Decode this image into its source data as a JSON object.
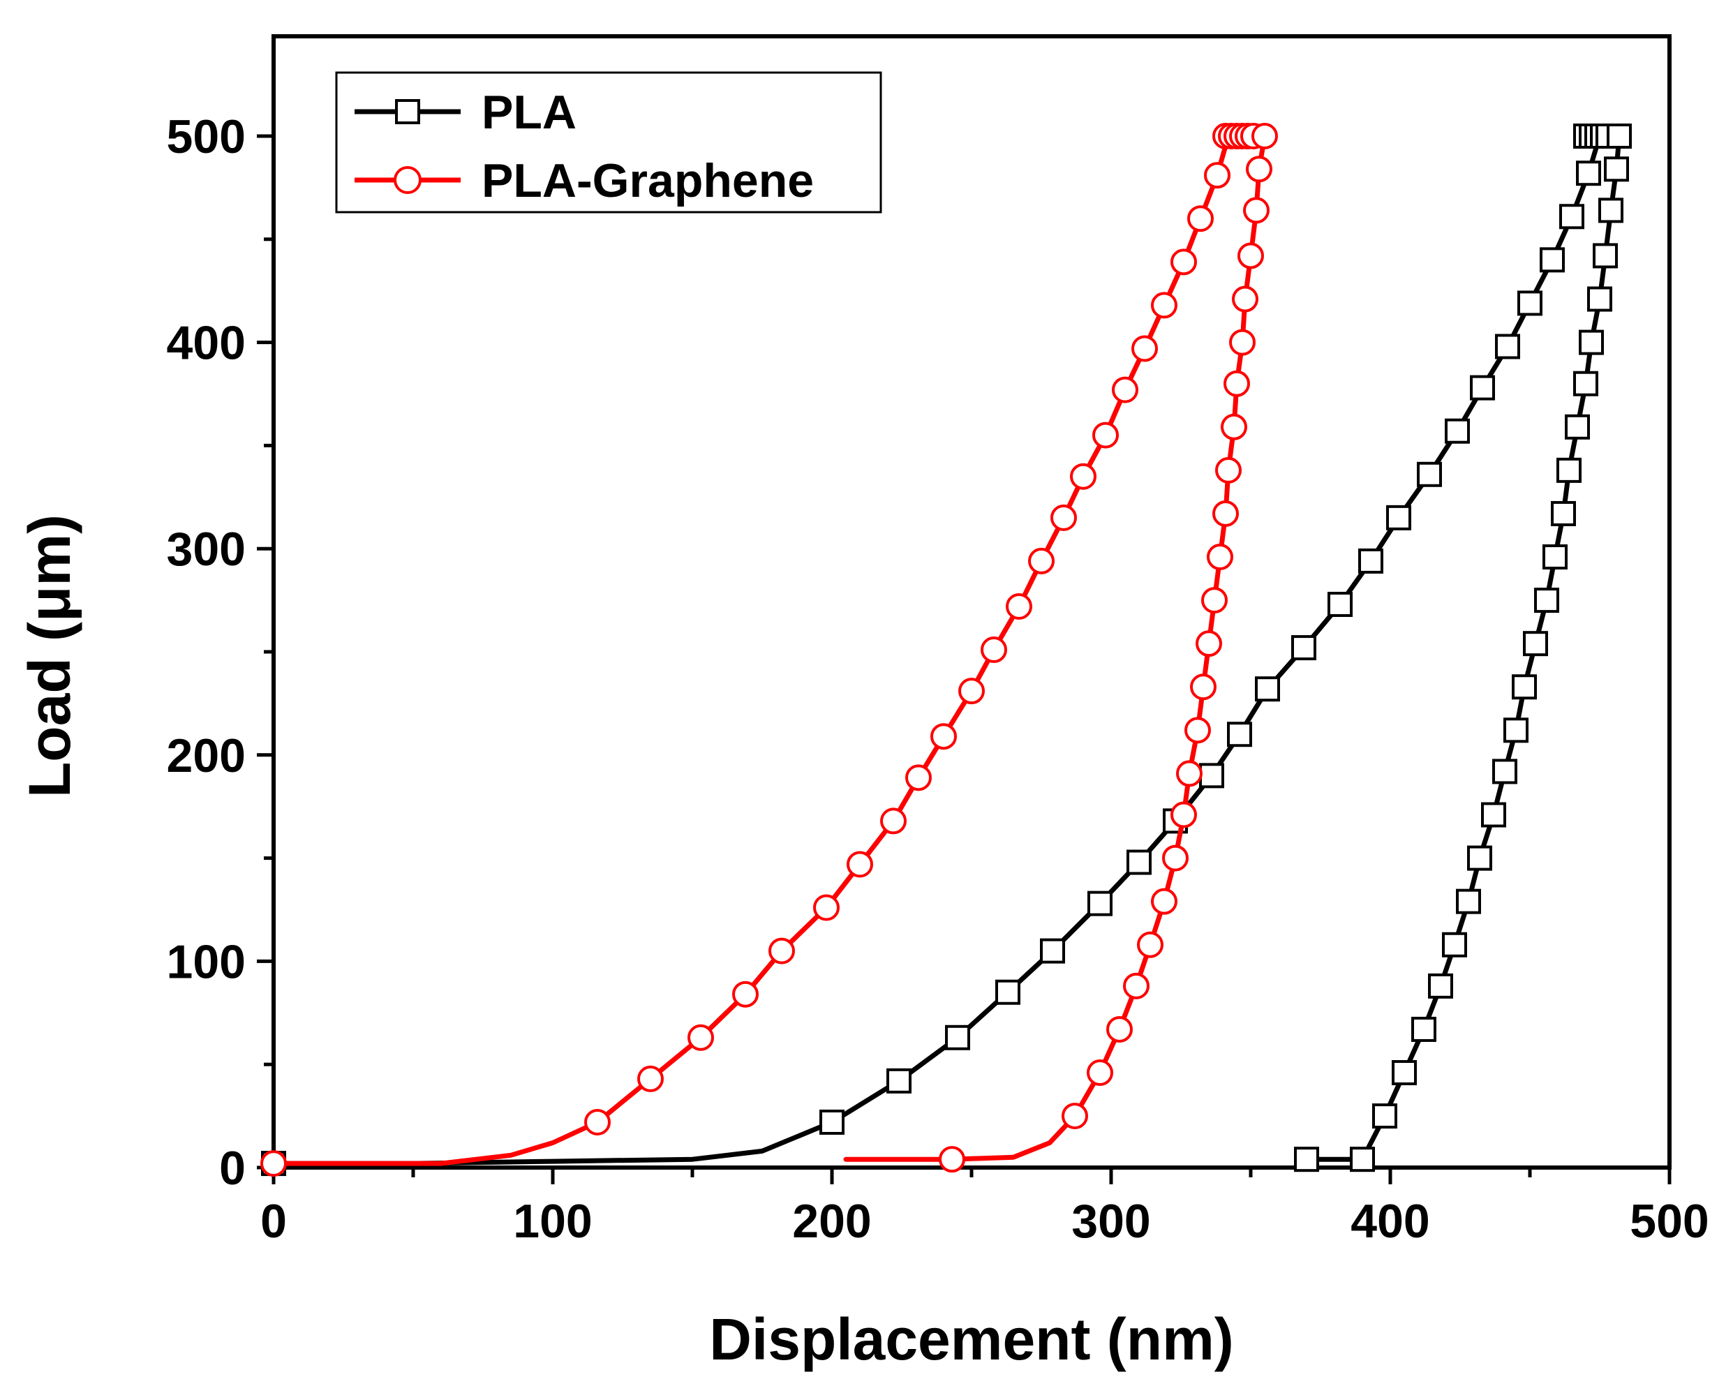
{
  "chart_data": {
    "type": "line",
    "title": "",
    "xlabel": "Displacement (nm)",
    "ylabel": "Load (μm)",
    "xlim": [
      0,
      500
    ],
    "ylim": [
      0,
      550
    ],
    "xticks": [
      0,
      100,
      200,
      300,
      400,
      500
    ],
    "yticks": [
      0,
      100,
      200,
      300,
      400,
      500
    ],
    "x_minor_step": 50,
    "y_minor_step": 50,
    "grid": false,
    "legend_position": "top-left",
    "series": [
      {
        "name": "PLA",
        "color": "#000000",
        "marker": "square",
        "line": [
          [
            0,
            2
          ],
          [
            50,
            2
          ],
          [
            100,
            3
          ],
          [
            150,
            4
          ],
          [
            175,
            8
          ],
          [
            200,
            22
          ],
          [
            224,
            42
          ],
          [
            245,
            63
          ],
          [
            263,
            85
          ],
          [
            279,
            105
          ],
          [
            296,
            128
          ],
          [
            310,
            148
          ],
          [
            323,
            168
          ],
          [
            336,
            190
          ],
          [
            346,
            210
          ],
          [
            356,
            232
          ],
          [
            369,
            252
          ],
          [
            382,
            273
          ],
          [
            393,
            294
          ],
          [
            403,
            315
          ],
          [
            414,
            336
          ],
          [
            424,
            357
          ],
          [
            433,
            378
          ],
          [
            442,
            398
          ],
          [
            450,
            419
          ],
          [
            458,
            440
          ],
          [
            465,
            461
          ],
          [
            471,
            482
          ],
          [
            475,
            500
          ],
          [
            482,
            500
          ],
          [
            481,
            484
          ],
          [
            479,
            464
          ],
          [
            477,
            442
          ],
          [
            475,
            421
          ],
          [
            472,
            400
          ],
          [
            470,
            380
          ],
          [
            467,
            359
          ],
          [
            464,
            338
          ],
          [
            462,
            317
          ],
          [
            459,
            296
          ],
          [
            456,
            275
          ],
          [
            452,
            254
          ],
          [
            448,
            233
          ],
          [
            445,
            212
          ],
          [
            441,
            192
          ],
          [
            437,
            171
          ],
          [
            432,
            150
          ],
          [
            428,
            129
          ],
          [
            423,
            108
          ],
          [
            418,
            88
          ],
          [
            412,
            67
          ],
          [
            405,
            46
          ],
          [
            398,
            25
          ],
          [
            390,
            4
          ],
          [
            370,
            4
          ]
        ],
        "markers": [
          [
            0,
            2
          ],
          [
            200,
            22
          ],
          [
            224,
            42
          ],
          [
            245,
            63
          ],
          [
            263,
            85
          ],
          [
            279,
            105
          ],
          [
            296,
            128
          ],
          [
            310,
            148
          ],
          [
            323,
            168
          ],
          [
            336,
            190
          ],
          [
            346,
            210
          ],
          [
            356,
            232
          ],
          [
            369,
            252
          ],
          [
            382,
            273
          ],
          [
            393,
            294
          ],
          [
            403,
            315
          ],
          [
            414,
            336
          ],
          [
            424,
            357
          ],
          [
            433,
            378
          ],
          [
            442,
            398
          ],
          [
            450,
            419
          ],
          [
            458,
            440
          ],
          [
            465,
            461
          ],
          [
            471,
            482
          ],
          [
            470,
            500
          ],
          [
            472,
            500
          ],
          [
            474,
            500
          ],
          [
            476,
            500
          ],
          [
            478,
            500
          ],
          [
            482,
            500
          ],
          [
            481,
            484
          ],
          [
            479,
            464
          ],
          [
            477,
            442
          ],
          [
            475,
            421
          ],
          [
            472,
            400
          ],
          [
            470,
            380
          ],
          [
            467,
            359
          ],
          [
            464,
            338
          ],
          [
            462,
            317
          ],
          [
            459,
            296
          ],
          [
            456,
            275
          ],
          [
            452,
            254
          ],
          [
            448,
            233
          ],
          [
            445,
            212
          ],
          [
            441,
            192
          ],
          [
            437,
            171
          ],
          [
            432,
            150
          ],
          [
            428,
            129
          ],
          [
            423,
            108
          ],
          [
            418,
            88
          ],
          [
            412,
            67
          ],
          [
            405,
            46
          ],
          [
            398,
            25
          ],
          [
            390,
            4
          ],
          [
            370,
            4
          ]
        ]
      },
      {
        "name": "PLA-Graphene",
        "color": "#ff0000",
        "marker": "circle",
        "line": [
          [
            0,
            2
          ],
          [
            60,
            2
          ],
          [
            85,
            6
          ],
          [
            100,
            12
          ],
          [
            116,
            22
          ],
          [
            135,
            43
          ],
          [
            153,
            63
          ],
          [
            169,
            84
          ],
          [
            182,
            105
          ],
          [
            198,
            126
          ],
          [
            210,
            147
          ],
          [
            222,
            168
          ],
          [
            231,
            189
          ],
          [
            240,
            209
          ],
          [
            250,
            231
          ],
          [
            258,
            251
          ],
          [
            267,
            272
          ],
          [
            275,
            294
          ],
          [
            283,
            315
          ],
          [
            290,
            335
          ],
          [
            298,
            355
          ],
          [
            305,
            377
          ],
          [
            312,
            397
          ],
          [
            319,
            418
          ],
          [
            326,
            439
          ],
          [
            332,
            460
          ],
          [
            338,
            481
          ],
          [
            342,
            500
          ],
          [
            355,
            500
          ],
          [
            353,
            484
          ],
          [
            352,
            464
          ],
          [
            350,
            442
          ],
          [
            348,
            421
          ],
          [
            347,
            400
          ],
          [
            345,
            380
          ],
          [
            344,
            359
          ],
          [
            342,
            338
          ],
          [
            341,
            317
          ],
          [
            339,
            296
          ],
          [
            337,
            275
          ],
          [
            335,
            254
          ],
          [
            333,
            233
          ],
          [
            331,
            212
          ],
          [
            328,
            191
          ],
          [
            326,
            171
          ],
          [
            323,
            150
          ],
          [
            319,
            129
          ],
          [
            314,
            108
          ],
          [
            309,
            88
          ],
          [
            303,
            67
          ],
          [
            296,
            46
          ],
          [
            287,
            25
          ],
          [
            278,
            12
          ],
          [
            265,
            5
          ],
          [
            243,
            4
          ],
          [
            205,
            4
          ]
        ],
        "markers": [
          [
            0,
            2
          ],
          [
            116,
            22
          ],
          [
            135,
            43
          ],
          [
            153,
            63
          ],
          [
            169,
            84
          ],
          [
            182,
            105
          ],
          [
            198,
            126
          ],
          [
            210,
            147
          ],
          [
            222,
            168
          ],
          [
            231,
            189
          ],
          [
            240,
            209
          ],
          [
            250,
            231
          ],
          [
            258,
            251
          ],
          [
            267,
            272
          ],
          [
            275,
            294
          ],
          [
            283,
            315
          ],
          [
            290,
            335
          ],
          [
            298,
            355
          ],
          [
            305,
            377
          ],
          [
            312,
            397
          ],
          [
            319,
            418
          ],
          [
            326,
            439
          ],
          [
            332,
            460
          ],
          [
            338,
            481
          ],
          [
            341,
            500
          ],
          [
            343,
            500
          ],
          [
            345,
            500
          ],
          [
            347,
            500
          ],
          [
            349,
            500
          ],
          [
            351,
            500
          ],
          [
            355,
            500
          ],
          [
            353,
            484
          ],
          [
            352,
            464
          ],
          [
            350,
            442
          ],
          [
            348,
            421
          ],
          [
            347,
            400
          ],
          [
            345,
            380
          ],
          [
            344,
            359
          ],
          [
            342,
            338
          ],
          [
            341,
            317
          ],
          [
            339,
            296
          ],
          [
            337,
            275
          ],
          [
            335,
            254
          ],
          [
            333,
            233
          ],
          [
            331,
            212
          ],
          [
            328,
            191
          ],
          [
            326,
            171
          ],
          [
            323,
            150
          ],
          [
            319,
            129
          ],
          [
            314,
            108
          ],
          [
            309,
            88
          ],
          [
            303,
            67
          ],
          [
            296,
            46
          ],
          [
            287,
            25
          ],
          [
            243,
            4
          ]
        ]
      }
    ]
  }
}
